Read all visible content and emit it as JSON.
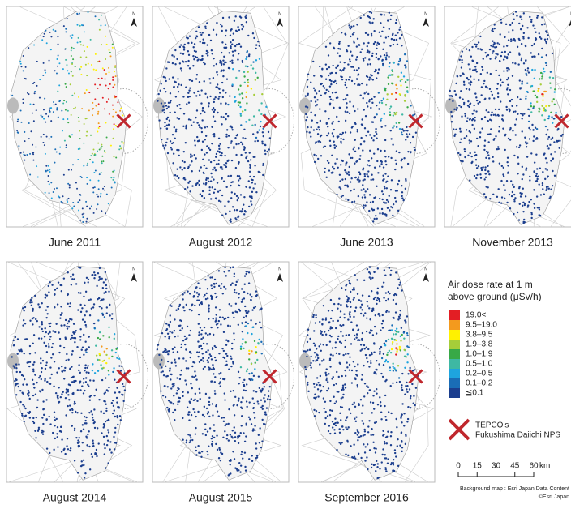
{
  "panels": [
    {
      "label": "June 2011"
    },
    {
      "label": "August 2012"
    },
    {
      "label": "June 2013"
    },
    {
      "label": "November 2013"
    },
    {
      "label": "August 2014"
    },
    {
      "label": "August 2015"
    },
    {
      "label": "September 2016"
    }
  ],
  "north_label": "N",
  "legend": {
    "title_lines": [
      "Air dose rate at 1 m",
      "above ground (μSv/h)"
    ],
    "items": [
      {
        "label": "19.0<",
        "color": "#e31e24"
      },
      {
        "label": "9.5–19.0",
        "color": "#f39a1e"
      },
      {
        "label": "3.8–9.5",
        "color": "#fff100"
      },
      {
        "label": "1.9–3.8",
        "color": "#a6cd39"
      },
      {
        "label": "1.0–1.9",
        "color": "#38a947"
      },
      {
        "label": "0.5–1.0",
        "color": "#3eb8a3"
      },
      {
        "label": "0.2–0.5",
        "color": "#1ea4de"
      },
      {
        "label": "0.1–0.2",
        "color": "#1a6db6"
      },
      {
        "label": "≦0.1",
        "color": "#1b3e8e"
      }
    ],
    "plant_label_lines": [
      "TEPCO's",
      "Fukushima Daiichi NPS"
    ],
    "plant_color": "#c0272d"
  },
  "scale_bar": {
    "ticks": [
      0,
      15,
      30,
      45,
      60
    ],
    "unit": "km"
  },
  "credits": [
    "Background map : Esri Japan Data Content",
    "©Esri Japan"
  ]
}
